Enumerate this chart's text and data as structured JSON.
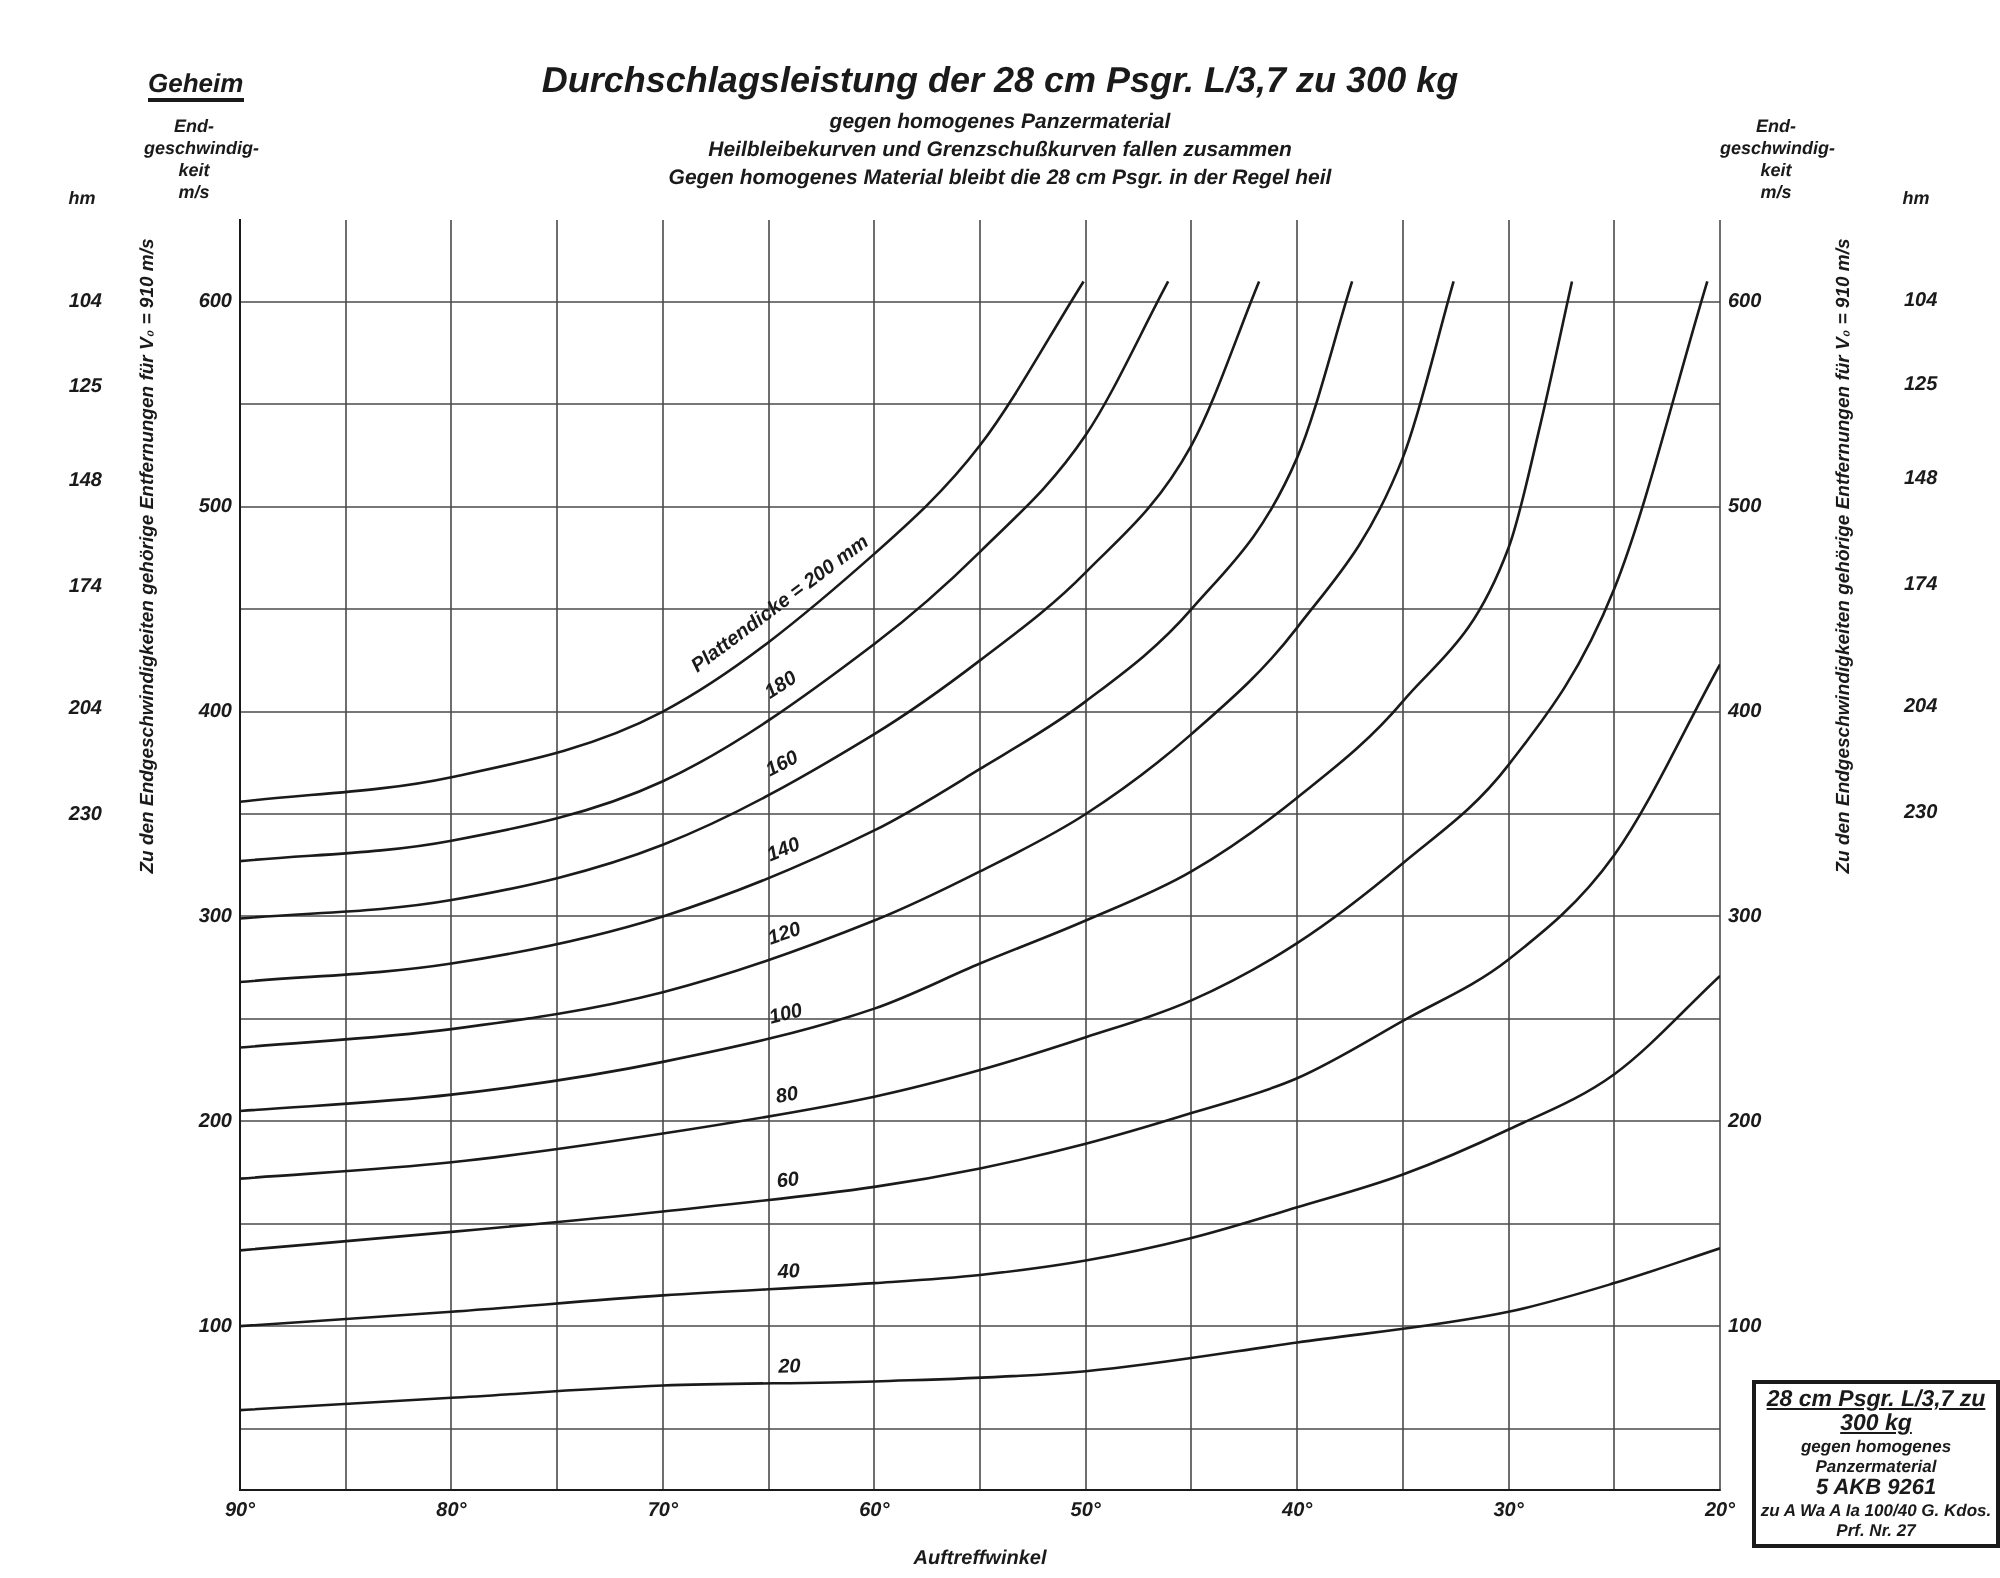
{
  "chart_data": {
    "type": "line",
    "title": "Durchschlagsleistung der 28 cm Psgr. L/3,7 zu 300 kg",
    "subtitle": "gegen homogenes Panzermaterial\nHeilbleibekurven und Grenzschußkurven fallen zusammen\nGegen homogenes Material bleibt die 28 cm Psgr. in der Regel heil",
    "xlabel": "Auftreffwinkel",
    "ylabel": "End-\ngeschwindig-\nkeit\nm/s",
    "y2label": "End-\ngeschwindig-\nkeit\nm/s",
    "y3label": "hm",
    "annotations": [
      "Geheim",
      "Zu den Endgeschwindigkeiten gehörige Entfernungen für V₀ = 910 m/s",
      "Zu den Endgeschwindigkeiten gehörige Entfernungen für V₀ = 910 m/s",
      "28 cm Psgr. L/3,7 zu 300 kg",
      "gegen homogenes Panzermaterial",
      "5 AKB 9261",
      "zu A Wa A Ia 100/40 G. Kdos.",
      "Prf. Nr. 27",
      "104",
      "125",
      "148",
      "174",
      "204",
      "230"
    ],
    "xlim": [
      90,
      20
    ],
    "xticks": [
      {
        "value": 90,
        "label": "90°"
      },
      {
        "value": 85,
        "label": null
      },
      {
        "value": 80,
        "label": "80°"
      },
      {
        "value": 75,
        "label": null
      },
      {
        "value": 70,
        "label": "70°"
      },
      {
        "value": 65,
        "label": null
      },
      {
        "value": 60,
        "label": "60°"
      },
      {
        "value": 55,
        "label": null
      },
      {
        "value": 50,
        "label": "50°"
      },
      {
        "value": 45,
        "label": null
      },
      {
        "value": 40,
        "label": "40°"
      },
      {
        "value": 35,
        "label": null
      },
      {
        "value": 30,
        "label": "30°"
      },
      {
        "value": 25,
        "label": null
      },
      {
        "value": 20,
        "label": "20°"
      }
    ],
    "ylim": [
      20,
      640
    ],
    "yticks": [
      {
        "value": 50,
        "label": null
      },
      100,
      {
        "value": 150,
        "label": null
      },
      200,
      {
        "value": 250,
        "label": null
      },
      300,
      {
        "value": 350,
        "label": null
      },
      400,
      {
        "value": 450,
        "label": null
      },
      500,
      {
        "value": 550,
        "label": null
      },
      600
    ],
    "y2lim": [
      20,
      640
    ],
    "y2ticks": [
      100,
      200,
      300,
      400,
      500,
      600
    ],
    "y3lim": [
      396,
      84
    ],
    "y3ticks": [
      104,
      125,
      148,
      174,
      204,
      230
    ],
    "grid": true,
    "marker": "none",
    "line_style": "solid",
    "series": [
      {
        "name": "Plattendicke = 200 mm",
        "color": "#1a1a1a",
        "x": [
          90,
          80,
          70,
          60,
          55,
          50.1
        ],
        "values": [
          356,
          368,
          400,
          477,
          530,
          610
        ]
      },
      {
        "name": "180",
        "color": "#1a1a1a",
        "x": [
          90,
          80,
          70,
          60,
          55,
          50,
          46.1
        ],
        "values": [
          327,
          337,
          366,
          433,
          478,
          535,
          610
        ]
      },
      {
        "name": "160",
        "color": "#1a1a1a",
        "x": [
          90,
          80,
          70,
          60,
          55,
          50,
          45,
          41.8
        ],
        "values": [
          299,
          308,
          335,
          389,
          425,
          468,
          530,
          610
        ]
      },
      {
        "name": "140",
        "color": "#1a1a1a",
        "x": [
          90,
          80,
          70,
          60,
          55,
          50,
          45,
          40,
          37.4
        ],
        "values": [
          268,
          277,
          300,
          342,
          372,
          405,
          450,
          524,
          610
        ]
      },
      {
        "name": "120",
        "color": "#1a1a1a",
        "x": [
          90,
          80,
          70,
          60,
          55,
          50,
          45,
          40,
          35,
          32.6
        ],
        "values": [
          236,
          245,
          263,
          298,
          322,
          350,
          389,
          441,
          524,
          610
        ]
      },
      {
        "name": "100",
        "color": "#1a1a1a",
        "x": [
          90,
          80,
          70,
          60,
          55,
          50,
          45,
          40,
          35,
          30,
          28.5,
          27
        ],
        "values": [
          205,
          213,
          229,
          255,
          277,
          298,
          322,
          358,
          405,
          480,
          540,
          610
        ]
      },
      {
        "name": "80",
        "color": "#1a1a1a",
        "x": [
          90,
          80,
          70,
          60,
          55,
          50,
          45,
          40,
          35,
          30,
          25,
          20.6
        ],
        "values": [
          172,
          180,
          194,
          212,
          225,
          241,
          259,
          287,
          326,
          374,
          460,
          610
        ]
      },
      {
        "name": "60",
        "color": "#1a1a1a",
        "x": [
          90,
          80,
          70,
          60,
          55,
          50,
          45,
          40,
          35,
          30,
          25,
          20
        ],
        "values": [
          137,
          146,
          156,
          168,
          177,
          189,
          204,
          221,
          249,
          279,
          330,
          423
        ]
      },
      {
        "name": "40",
        "color": "#1a1a1a",
        "x": [
          90,
          80,
          70,
          60,
          55,
          50,
          45,
          40,
          35,
          30,
          25,
          20
        ],
        "values": [
          100,
          107,
          115,
          121,
          125,
          132,
          143,
          158,
          174,
          196,
          223,
          271
        ]
      },
      {
        "name": "20",
        "color": "#1a1a1a",
        "x": [
          90,
          80,
          70,
          60,
          50,
          40,
          30,
          25,
          20
        ],
        "values": [
          59,
          65,
          71,
          73,
          78,
          92,
          107,
          121,
          138
        ]
      }
    ]
  }
}
